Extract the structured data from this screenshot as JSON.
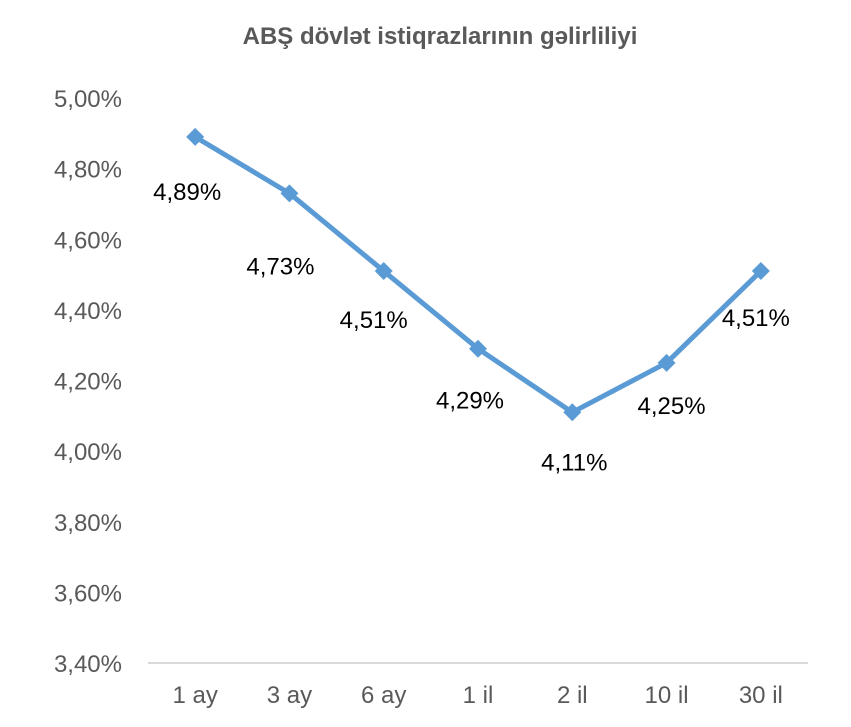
{
  "chart_data": {
    "type": "line",
    "title": "ABŞ dövlət istiqrazlarının gəlirliliyi",
    "xlabel": "",
    "ylabel": "",
    "categories": [
      "1 ay",
      "3 ay",
      "6 ay",
      "1 il",
      "2 il",
      "10 il",
      "30 il"
    ],
    "series": [
      {
        "values": [
          4.89,
          4.73,
          4.51,
          4.29,
          4.11,
          4.25,
          4.51
        ],
        "labels": [
          "4,89%",
          "4,73%",
          "4,51%",
          "4,29%",
          "4,11%",
          "4,25%",
          "4,51%"
        ],
        "color": "#5b9bd5",
        "marker": "diamond"
      }
    ],
    "ylim": [
      3.4,
      5.0
    ],
    "yticks": [
      3.4,
      3.6,
      3.8,
      4.0,
      4.2,
      4.4,
      4.6,
      4.8,
      5.0
    ],
    "ytick_labels": [
      "3,40%",
      "3,60%",
      "3,80%",
      "4,00%",
      "4,20%",
      "4,40%",
      "4,60%",
      "4,80%",
      "5,00%"
    ],
    "grid": false,
    "legend": "none",
    "colors": {
      "axis": "#d9d9d9",
      "text": "#595959"
    }
  }
}
